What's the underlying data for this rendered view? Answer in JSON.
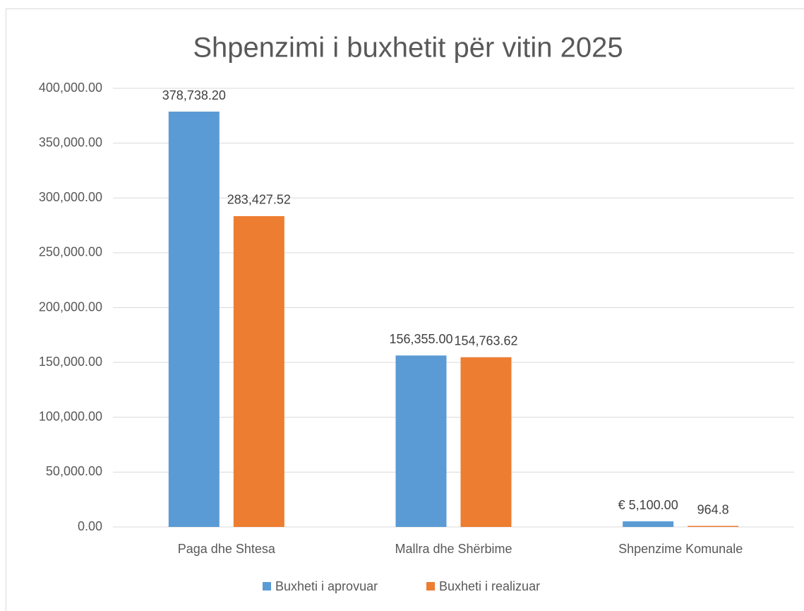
{
  "chart_data": {
    "type": "bar",
    "title": "Shpenzimi i buxhetit për vitin 2025",
    "categories": [
      "Paga dhe Shtesa",
      "Mallra dhe Shërbime",
      "Shpenzime Komunale"
    ],
    "series": [
      {
        "name": "Buxheti i aprovuar",
        "color": "#5b9bd5",
        "values": [
          378738.2,
          156355.0,
          5100.0
        ],
        "value_labels": [
          "378,738.20",
          "156,355.00",
          "€ 5,100.00"
        ]
      },
      {
        "name": "Buxheti i realizuar",
        "color": "#ed7d31",
        "values": [
          283427.52,
          154763.62,
          964.8
        ],
        "value_labels": [
          "283,427.52",
          "154,763.62",
          "964.8"
        ]
      }
    ],
    "ylim": [
      0,
      400000
    ],
    "yticks": [
      {
        "value": 0,
        "label": "0.00"
      },
      {
        "value": 50000,
        "label": "50,000.00"
      },
      {
        "value": 100000,
        "label": "100,000.00"
      },
      {
        "value": 150000,
        "label": "150,000.00"
      },
      {
        "value": 200000,
        "label": "200,000.00"
      },
      {
        "value": 250000,
        "label": "250,000.00"
      },
      {
        "value": 300000,
        "label": "300,000.00"
      },
      {
        "value": 350000,
        "label": "350,000.00"
      },
      {
        "value": 400000,
        "label": "400,000.00"
      }
    ],
    "grid": true,
    "legend": "bottom"
  }
}
